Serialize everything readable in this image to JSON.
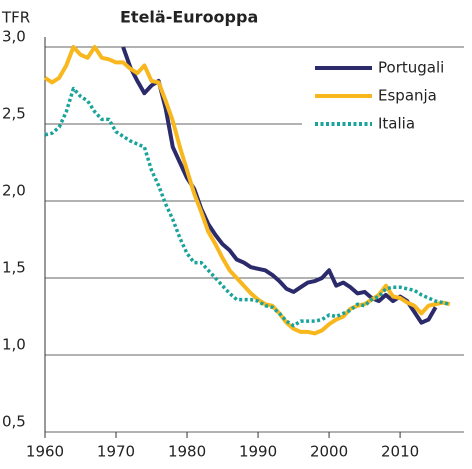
{
  "chart_data": {
    "type": "line",
    "title": "Etelä-Eurooppa",
    "y_label": "TFR",
    "x": [
      1960,
      1961,
      1962,
      1963,
      1964,
      1965,
      1966,
      1967,
      1968,
      1969,
      1970,
      1971,
      1972,
      1973,
      1974,
      1975,
      1976,
      1977,
      1978,
      1979,
      1980,
      1981,
      1982,
      1983,
      1984,
      1985,
      1986,
      1987,
      1988,
      1989,
      1990,
      1991,
      1992,
      1993,
      1994,
      1995,
      1996,
      1997,
      1998,
      1999,
      2000,
      2001,
      2002,
      2003,
      2004,
      2005,
      2006,
      2007,
      2008,
      2009,
      2010,
      2011,
      2012,
      2013,
      2014,
      2015,
      2016,
      2017
    ],
    "series": [
      {
        "name": "Portugali",
        "color": "#2b2a6b",
        "style": "solid",
        "values": [
          null,
          null,
          null,
          null,
          null,
          null,
          null,
          null,
          null,
          null,
          null,
          3.0,
          2.87,
          2.78,
          2.7,
          2.75,
          2.78,
          2.6,
          2.35,
          2.25,
          2.15,
          2.08,
          1.95,
          1.85,
          1.78,
          1.72,
          1.68,
          1.62,
          1.6,
          1.57,
          1.56,
          1.55,
          1.52,
          1.48,
          1.43,
          1.41,
          1.44,
          1.47,
          1.48,
          1.5,
          1.55,
          1.45,
          1.47,
          1.44,
          1.4,
          1.41,
          1.37,
          1.35,
          1.39,
          1.35,
          1.38,
          1.35,
          1.28,
          1.21,
          1.23,
          1.31,
          null,
          null
        ]
      },
      {
        "name": "Espanja",
        "color": "#f7b71d",
        "style": "solid",
        "values": [
          2.8,
          2.77,
          2.8,
          2.88,
          3.0,
          2.95,
          2.93,
          3.0,
          2.93,
          2.92,
          2.9,
          2.9,
          2.86,
          2.83,
          2.88,
          2.78,
          2.77,
          2.65,
          2.52,
          2.35,
          2.2,
          2.05,
          1.93,
          1.8,
          1.72,
          1.63,
          1.55,
          1.5,
          1.45,
          1.4,
          1.36,
          1.33,
          1.32,
          1.27,
          1.21,
          1.17,
          1.15,
          1.15,
          1.14,
          1.16,
          1.2,
          1.23,
          1.25,
          1.3,
          1.32,
          1.33,
          1.36,
          1.39,
          1.45,
          1.38,
          1.37,
          1.34,
          1.32,
          1.27,
          1.32,
          1.33,
          1.34,
          1.33
        ]
      },
      {
        "name": "Italia",
        "color": "#1aa39a",
        "style": "dotted",
        "values": [
          2.43,
          2.44,
          2.48,
          2.58,
          2.73,
          2.68,
          2.65,
          2.58,
          2.53,
          2.53,
          2.45,
          2.42,
          2.39,
          2.37,
          2.35,
          2.2,
          2.1,
          1.98,
          1.88,
          1.76,
          1.66,
          1.6,
          1.6,
          1.55,
          1.5,
          1.45,
          1.4,
          1.36,
          1.36,
          1.36,
          1.35,
          1.32,
          1.31,
          1.27,
          1.22,
          1.19,
          1.22,
          1.22,
          1.22,
          1.23,
          1.26,
          1.25,
          1.27,
          1.29,
          1.33,
          1.32,
          1.36,
          1.38,
          1.43,
          1.44,
          1.44,
          1.43,
          1.42,
          1.39,
          1.37,
          1.35,
          1.34,
          1.33
        ]
      }
    ],
    "xlim": [
      1960,
      2019
    ],
    "xticks": [
      1960,
      1970,
      1980,
      1990,
      2000,
      2010
    ],
    "ylim": [
      0.5,
      3.0
    ],
    "yticks": [
      {
        "value": 0.5,
        "label": "0,5"
      },
      {
        "value": 1.0,
        "label": "1,0"
      },
      {
        "value": 1.5,
        "label": "1,5"
      },
      {
        "value": 2.0,
        "label": "2,0"
      },
      {
        "value": 2.5,
        "label": "2,5"
      },
      {
        "value": 3.0,
        "label": "3,0"
      }
    ],
    "grid": true,
    "legend": "top-right"
  }
}
